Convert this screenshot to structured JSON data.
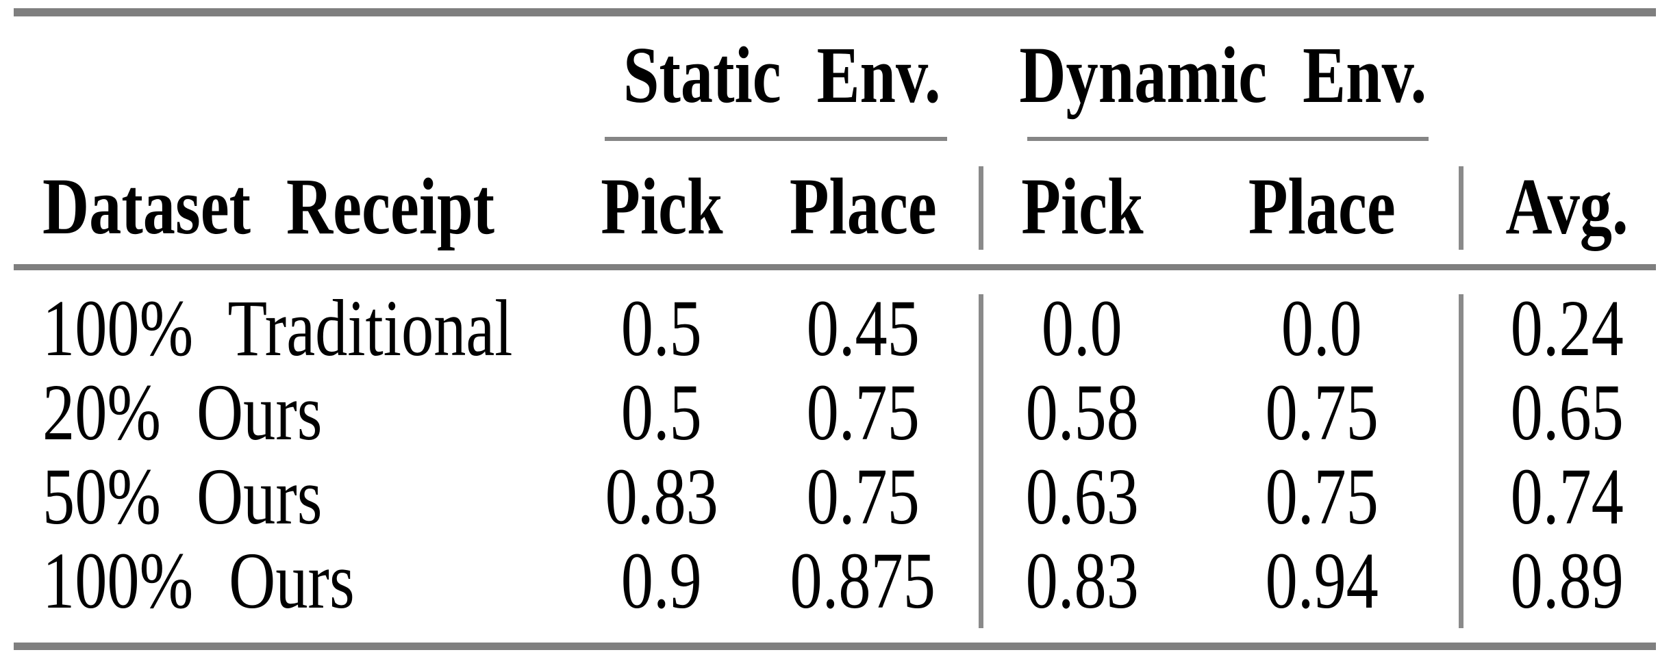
{
  "page": {
    "background": "#ffffff"
  },
  "colors": {
    "text": "#000000",
    "thick_rule_gray": "#7f7f7f",
    "thin_rule_gray": "#858585",
    "vertical_rule_gray": "#8a8a8a"
  },
  "table": {
    "groups": {
      "static": "Static Env.",
      "dynamic": "Dynamic Env."
    },
    "headers": {
      "dataset": "Dataset Receipt",
      "static_pick": "Pick",
      "static_place": "Place",
      "dynamic_pick": "Pick",
      "dynamic_place": "Place",
      "avg": "Avg."
    },
    "rows": [
      {
        "label": "100% Traditional",
        "cells": [
          "0.5",
          "0.45",
          "0.0",
          "0.0",
          "0.24"
        ]
      },
      {
        "label": "20% Ours",
        "cells": [
          "0.5",
          "0.75",
          "0.58",
          "0.75",
          "0.65"
        ]
      },
      {
        "label": "50% Ours",
        "cells": [
          "0.83",
          "0.75",
          "0.63",
          "0.75",
          "0.74"
        ]
      },
      {
        "label": "100% Ours",
        "cells": [
          "0.9",
          "0.875",
          "0.83",
          "0.94",
          "0.89"
        ]
      }
    ]
  },
  "chart_data": {
    "type": "table",
    "title": "",
    "column_groups": [
      "",
      "Static Env.",
      "Static Env.",
      "Dynamic Env.",
      "Dynamic Env.",
      ""
    ],
    "columns": [
      "Dataset Receipt",
      "Pick",
      "Place",
      "Pick",
      "Place",
      "Avg."
    ],
    "rows": [
      [
        "100% Traditional",
        0.5,
        0.45,
        0.0,
        0.0,
        0.24
      ],
      [
        "20% Ours",
        0.5,
        0.75,
        0.58,
        0.75,
        0.65
      ],
      [
        "50% Ours",
        0.83,
        0.75,
        0.63,
        0.75,
        0.74
      ],
      [
        "100% Ours",
        0.9,
        0.875,
        0.83,
        0.94,
        0.89
      ]
    ]
  }
}
